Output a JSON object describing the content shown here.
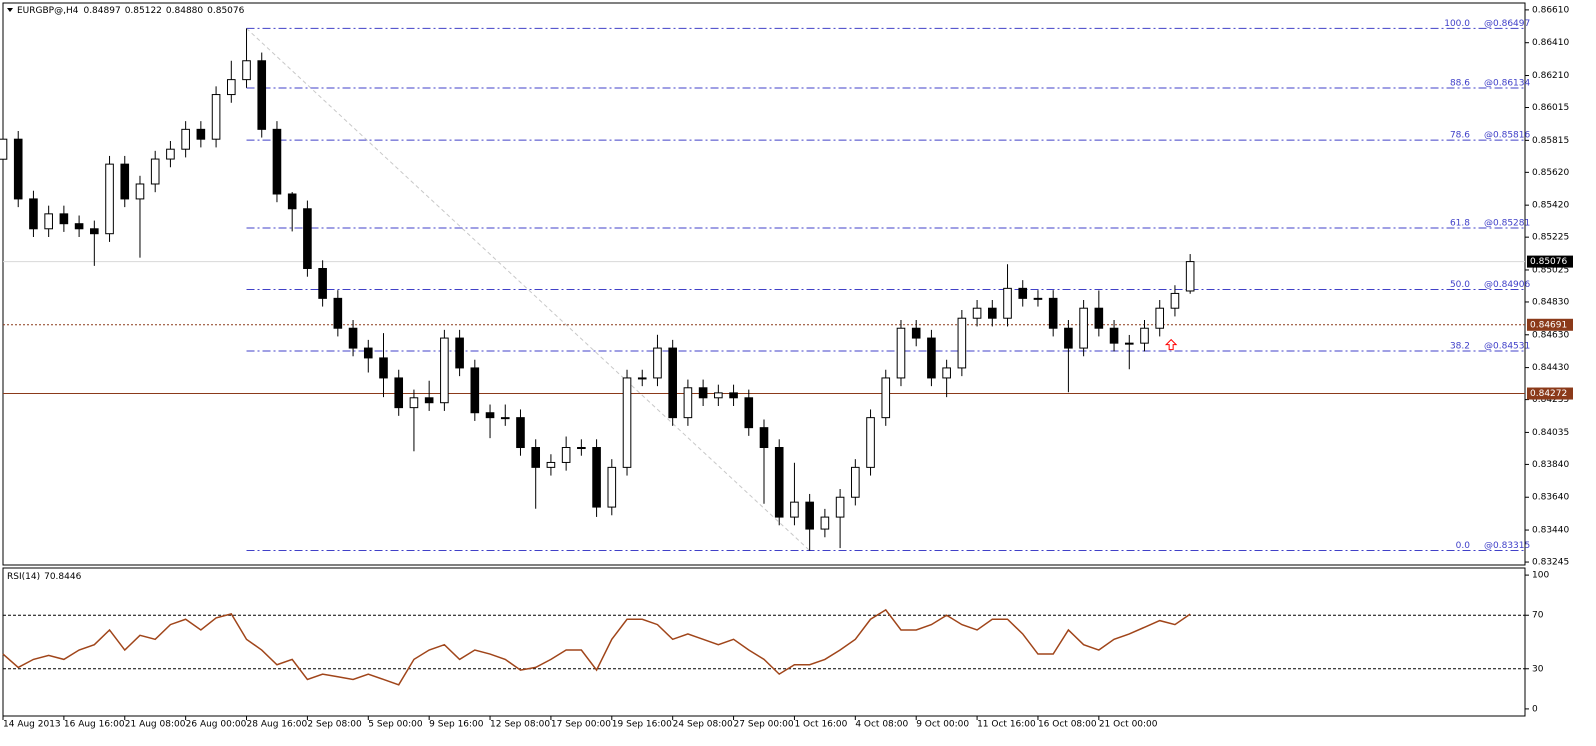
{
  "chart_data": [
    {
      "type": "candlestick",
      "title": "EURGBP@,H4",
      "quote": [
        "0.84897",
        "0.85122",
        "0.84880",
        "0.85076"
      ],
      "x": [
        0,
        4,
        8,
        12,
        16,
        20,
        24,
        28,
        32,
        36,
        40,
        44,
        48,
        52,
        56,
        60,
        64,
        68,
        72,
        76,
        80,
        84,
        88,
        92,
        96,
        100,
        104,
        108,
        112,
        116,
        120,
        124,
        128,
        132,
        136,
        140,
        144,
        148,
        152,
        156,
        160,
        164,
        168,
        172,
        176,
        180,
        184,
        188,
        192,
        196,
        200,
        204,
        208,
        212,
        216,
        220,
        224,
        228,
        232,
        236,
        240,
        244,
        248,
        252,
        256,
        260,
        264,
        268,
        272,
        276,
        280,
        284,
        288,
        292,
        296,
        300,
        304,
        308,
        312
      ],
      "open": [
        0.857,
        0.85822,
        0.85458,
        0.85276,
        0.85367,
        0.85307,
        0.85276,
        0.85246,
        0.8567,
        0.85458,
        0.85549,
        0.85701,
        0.85761,
        0.85882,
        0.85822,
        0.86094,
        0.86185,
        0.863,
        0.85882,
        0.85488,
        0.85398,
        0.85034,
        0.84852,
        0.8467,
        0.84549,
        0.84489,
        0.84367,
        0.84186,
        0.84246,
        0.84216,
        0.8461,
        0.84428,
        0.84155,
        0.84125,
        0.84125,
        0.83943,
        0.83822,
        0.83852,
        0.83943,
        0.83943,
        0.8358,
        0.83822,
        0.84367,
        0.84367,
        0.84549,
        0.84125,
        0.84307,
        0.84246,
        0.84276,
        0.84246,
        0.84064,
        0.83943,
        0.83519,
        0.8361,
        0.83446,
        0.83519,
        0.8364,
        0.83822,
        0.84125,
        0.84367,
        0.8467,
        0.8461,
        0.84367,
        0.84428,
        0.84731,
        0.84792,
        0.84731,
        0.84913,
        0.84852,
        0.84852,
        0.8467,
        0.84549,
        0.84792,
        0.8467,
        0.84579,
        0.84579,
        0.8467,
        0.84792,
        0.84897
      ],
      "high": [
        0.85872,
        0.85872,
        0.85508,
        0.85417,
        0.85417,
        0.85357,
        0.85326,
        0.8572,
        0.8572,
        0.85599,
        0.85751,
        0.85811,
        0.85932,
        0.85932,
        0.86144,
        0.863,
        0.86497,
        0.8635,
        0.85932,
        0.855,
        0.85448,
        0.85084,
        0.84902,
        0.8472,
        0.84599,
        0.8464,
        0.84417,
        0.84296,
        0.8435,
        0.8466,
        0.8466,
        0.84478,
        0.84205,
        0.84205,
        0.84175,
        0.83993,
        0.83902,
        0.8401,
        0.83993,
        0.83993,
        0.83872,
        0.84417,
        0.84417,
        0.8463,
        0.84599,
        0.84357,
        0.84357,
        0.84326,
        0.84326,
        0.84296,
        0.84114,
        0.83993,
        0.8385,
        0.8366,
        0.83569,
        0.8369,
        0.83872,
        0.84175,
        0.84417,
        0.8472,
        0.8472,
        0.8466,
        0.84478,
        0.84781,
        0.84842,
        0.84842,
        0.8506,
        0.84963,
        0.84902,
        0.84902,
        0.8472,
        0.84842,
        0.849,
        0.8472,
        0.84629,
        0.8472,
        0.84842,
        0.84932,
        0.85122
      ],
      "low": [
        0.8565,
        0.85408,
        0.85226,
        0.85226,
        0.85257,
        0.85226,
        0.8505,
        0.85196,
        0.85408,
        0.851,
        0.85499,
        0.85651,
        0.85711,
        0.85772,
        0.85772,
        0.86044,
        0.86135,
        0.85832,
        0.85438,
        0.8526,
        0.84984,
        0.84802,
        0.8462,
        0.84499,
        0.844,
        0.8425,
        0.84136,
        0.8392,
        0.84166,
        0.84166,
        0.84378,
        0.84105,
        0.84,
        0.84075,
        0.83893,
        0.8357,
        0.83772,
        0.83802,
        0.83893,
        0.8352,
        0.8353,
        0.83772,
        0.84317,
        0.84317,
        0.84075,
        0.84075,
        0.84196,
        0.84196,
        0.84196,
        0.84014,
        0.836,
        0.83469,
        0.83469,
        0.83315,
        0.83396,
        0.8333,
        0.8359,
        0.83772,
        0.84075,
        0.84317,
        0.8456,
        0.84317,
        0.8425,
        0.84378,
        0.84681,
        0.84681,
        0.84681,
        0.84802,
        0.84802,
        0.8462,
        0.8428,
        0.84499,
        0.8462,
        0.84529,
        0.8442,
        0.84529,
        0.8462,
        0.84742,
        0.8488
      ],
      "close": [
        0.85822,
        0.85458,
        0.85276,
        0.85367,
        0.85307,
        0.85276,
        0.85246,
        0.8567,
        0.85458,
        0.85549,
        0.85701,
        0.85761,
        0.85882,
        0.85822,
        0.86094,
        0.86185,
        0.863,
        0.85882,
        0.85488,
        0.85398,
        0.85034,
        0.84852,
        0.8467,
        0.84549,
        0.84489,
        0.84367,
        0.84186,
        0.84246,
        0.84216,
        0.8461,
        0.84428,
        0.84155,
        0.84125,
        0.84125,
        0.83943,
        0.83822,
        0.83852,
        0.83943,
        0.83943,
        0.8358,
        0.83822,
        0.84367,
        0.84367,
        0.84549,
        0.84125,
        0.84307,
        0.84246,
        0.84276,
        0.84246,
        0.84064,
        0.83943,
        0.83519,
        0.8361,
        0.83446,
        0.83519,
        0.8364,
        0.83822,
        0.84125,
        0.84367,
        0.8467,
        0.8461,
        0.84367,
        0.84428,
        0.84731,
        0.84792,
        0.84731,
        0.84913,
        0.84852,
        0.84852,
        0.8467,
        0.84549,
        0.84792,
        0.8467,
        0.84579,
        0.84579,
        0.8467,
        0.84792,
        0.84882,
        0.85076
      ],
      "up_color": "#ffffff",
      "down_color": "#000000",
      "edge_color": "#000000",
      "xlim": [
        0,
        400
      ],
      "ylim": [
        0.83227,
        0.86652
      ],
      "yticks": [
        {
          "value": 0.8661,
          "label": "0.86610"
        },
        {
          "value": 0.8641,
          "label": "0.86410"
        },
        {
          "value": 0.8621,
          "label": "0.86210"
        },
        0.86015,
        0.85815,
        {
          "value": 0.8562,
          "label": "0.85620"
        },
        {
          "value": 0.8542,
          "label": "0.85420"
        },
        0.85225,
        0.85025,
        {
          "value": 0.8483,
          "label": "0.84830"
        },
        {
          "value": 0.8463,
          "label": "0.84630"
        },
        {
          "value": 0.8443,
          "label": "0.84430"
        },
        0.84235,
        0.84035,
        {
          "value": 0.8384,
          "label": "0.83840"
        },
        {
          "value": 0.8364,
          "label": "0.83640"
        },
        {
          "value": 0.8344,
          "label": "0.83440"
        },
        0.83245
      ],
      "xticks": [
        {
          "value": 0,
          "label": "14 Aug 2013"
        },
        {
          "value": 16,
          "label": "16 Aug 16:00"
        },
        {
          "value": 32,
          "label": "21 Aug 08:00"
        },
        {
          "value": 48,
          "label": "26 Aug 00:00"
        },
        {
          "value": 64,
          "label": "28 Aug 16:00"
        },
        {
          "value": 80,
          "label": "2 Sep 08:00"
        },
        {
          "value": 96,
          "label": "5 Sep 00:00"
        },
        {
          "value": 112,
          "label": "9 Sep 16:00"
        },
        {
          "value": 128,
          "label": "12 Sep 08:00"
        },
        {
          "value": 144,
          "label": "17 Sep 00:00"
        },
        {
          "value": 160,
          "label": "19 Sep 16:00"
        },
        {
          "value": 176,
          "label": "24 Sep 08:00"
        },
        {
          "value": 192,
          "label": "27 Sep 00:00"
        },
        {
          "value": 208,
          "label": "1 Oct 16:00"
        },
        {
          "value": 224,
          "label": "4 Oct 08:00"
        },
        {
          "value": 240,
          "label": "9 Oct 00:00"
        },
        {
          "value": 256,
          "label": "11 Oct 16:00"
        },
        {
          "value": 272,
          "label": "16 Oct 08:00"
        },
        {
          "value": 288,
          "label": "21 Oct 00:00"
        }
      ],
      "fibonacci": {
        "x_start": 64,
        "x_end": 212,
        "color": "#4040c8",
        "trend_color": "#c8c8c8",
        "levels": [
          {
            "level": {
              "value": 100,
              "label": "100.0"
            },
            "price": 0.86497,
            "price_label": "@0.86497"
          },
          {
            "level": 88.6,
            "price": 0.86134,
            "price_label": "@0.86134"
          },
          {
            "level": 78.6,
            "price": 0.85816,
            "price_label": "@0.85816"
          },
          {
            "level": 61.8,
            "price": 0.85281,
            "price_label": "@0.85281"
          },
          {
            "level": {
              "value": 50,
              "label": "50.0"
            },
            "price": 0.84906,
            "price_label": "@0.84906"
          },
          {
            "level": 38.2,
            "price": 0.84531,
            "price_label": "@0.84531"
          },
          {
            "level": {
              "value": 0,
              "label": "0.0"
            },
            "price": 0.83315,
            "price_label": "@0.83315"
          }
        ]
      },
      "price_lines": [
        {
          "value": 0.85076,
          "color": "#d8d8d8",
          "label_color": "#000000",
          "style": "solid"
        },
        {
          "value": 0.84691,
          "color": "#8b3a1a",
          "label_color": "#8b3a1a",
          "style": "dotted"
        },
        {
          "value": 0.84272,
          "color": "#8b3a1a",
          "label_color": "#8b3a1a",
          "style": "solid"
        }
      ],
      "arrow": {
        "x": 307,
        "price": 0.8457,
        "color": "#ff0000"
      }
    },
    {
      "type": "line",
      "title": "RSI(14)",
      "x": [
        0,
        4,
        8,
        12,
        16,
        20,
        24,
        28,
        32,
        36,
        40,
        44,
        48,
        52,
        56,
        60,
        64,
        68,
        72,
        76,
        80,
        84,
        88,
        92,
        96,
        100,
        104,
        108,
        112,
        116,
        120,
        124,
        128,
        132,
        136,
        140,
        144,
        148,
        152,
        156,
        160,
        164,
        168,
        172,
        176,
        180,
        184,
        188,
        192,
        196,
        200,
        204,
        208,
        212,
        216,
        220,
        224,
        228,
        232,
        236,
        240,
        244,
        248,
        252,
        256,
        260,
        264,
        268,
        272,
        276,
        280,
        284,
        288,
        292,
        296,
        300,
        304,
        308,
        312
      ],
      "values": [
        41,
        31,
        37,
        40,
        37,
        44,
        48,
        59,
        44,
        55,
        52,
        63,
        67,
        59,
        68,
        71,
        52,
        44,
        33,
        37,
        22,
        26,
        24,
        22,
        26,
        22,
        18,
        37,
        44,
        48,
        37,
        44,
        41,
        37,
        29,
        31,
        37,
        44,
        44,
        29,
        52,
        67,
        67,
        63,
        52,
        56,
        52,
        48,
        52,
        44,
        37,
        26,
        33,
        33,
        37,
        44,
        52,
        67,
        74,
        59,
        59,
        63,
        70,
        63,
        59,
        67,
        67,
        56,
        41,
        41,
        59,
        48,
        44,
        52,
        56,
        61,
        66,
        63,
        70.8446
      ],
      "color": "#a0451a",
      "xlim": [
        0,
        400
      ],
      "ylim": [
        -5.3,
        105.3
      ],
      "yticks": [
        0,
        30,
        70,
        100
      ],
      "levels": [
        30,
        70
      ]
    }
  ]
}
